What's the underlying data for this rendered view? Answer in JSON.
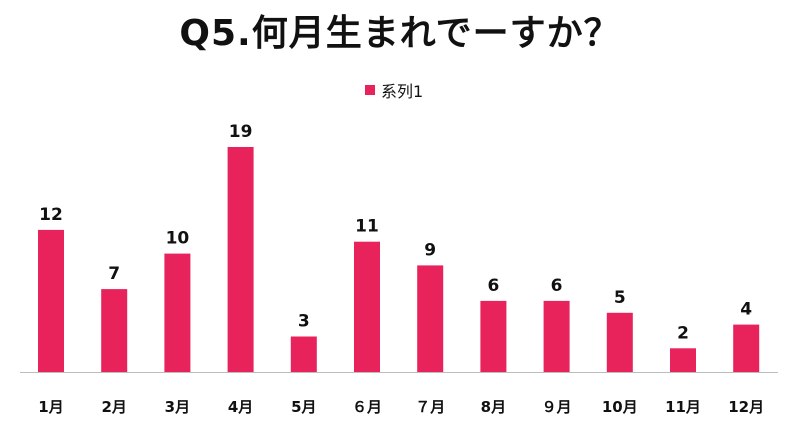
{
  "chart_data": {
    "type": "bar",
    "title": "Q5.何月生まれでーすか？",
    "categories": [
      "1月",
      "2月",
      "3月",
      "4月",
      "5月",
      "６月",
      "７月",
      "8月",
      "９月",
      "10月",
      "11月",
      "12月"
    ],
    "series": [
      {
        "name": "系列1",
        "values": [
          12,
          7,
          10,
          19,
          3,
          11,
          9,
          6,
          6,
          5,
          2,
          4
        ],
        "color": "#e8225a"
      }
    ],
    "xlabel": "",
    "ylabel": "",
    "ylim": [
      0,
      19
    ],
    "grid": false,
    "legend_position": "top-center",
    "data_labels": true
  }
}
